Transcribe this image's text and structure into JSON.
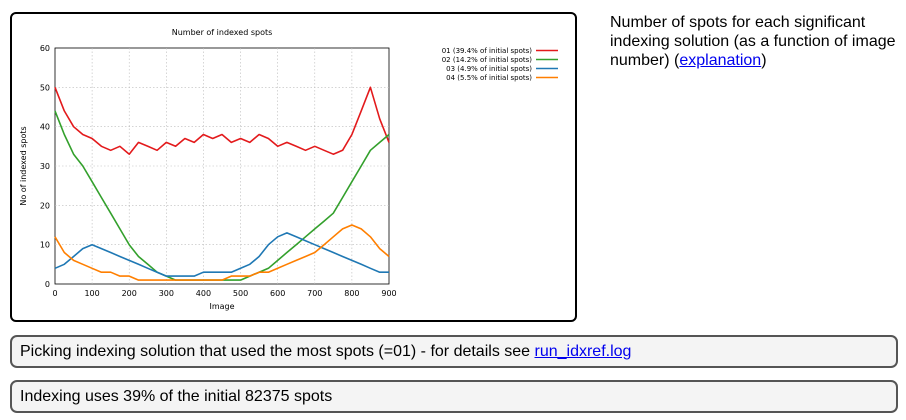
{
  "caption": {
    "text": "Number of spots for each significant indexing solution (as a function of image number) (",
    "link_label": "explanation",
    "close": ")"
  },
  "messages": {
    "picking_text": "Picking indexing solution that used the most spots (=01) - for details see ",
    "picking_link": "run_idxref.log",
    "indexing_text": "Indexing uses 39% of the initial 82375 spots"
  },
  "chart_data": {
    "type": "line",
    "title": "Number of indexed spots",
    "xlabel": "Image",
    "ylabel": "No of indexed spots",
    "xlim": [
      0,
      900
    ],
    "ylim": [
      0,
      60
    ],
    "xticks": [
      0,
      100,
      200,
      300,
      400,
      500,
      600,
      700,
      800,
      900
    ],
    "yticks": [
      0,
      10,
      20,
      30,
      40,
      50,
      60
    ],
    "grid": true,
    "legend_position": "top-right",
    "x": [
      0,
      25,
      50,
      75,
      100,
      125,
      150,
      175,
      200,
      225,
      250,
      275,
      300,
      325,
      350,
      375,
      400,
      425,
      450,
      475,
      500,
      525,
      550,
      575,
      600,
      625,
      650,
      675,
      700,
      725,
      750,
      775,
      800,
      825,
      850,
      875,
      900
    ],
    "series": [
      {
        "name": "01 (39.4% of initial spots)",
        "color": "#e31a1c",
        "values": [
          50,
          44,
          40,
          38,
          37,
          35,
          34,
          35,
          33,
          36,
          35,
          34,
          36,
          35,
          37,
          36,
          38,
          37,
          38,
          36,
          37,
          36,
          38,
          37,
          35,
          36,
          35,
          34,
          35,
          34,
          33,
          34,
          38,
          44,
          50,
          42,
          36
        ]
      },
      {
        "name": "02 (14.2% of initial spots)",
        "color": "#33a02c",
        "values": [
          44,
          38,
          33,
          30,
          26,
          22,
          18,
          14,
          10,
          7,
          5,
          3,
          2,
          1,
          1,
          1,
          1,
          1,
          1,
          1,
          1,
          2,
          3,
          4,
          6,
          8,
          10,
          12,
          14,
          16,
          18,
          22,
          26,
          30,
          34,
          36,
          38
        ]
      },
      {
        "name": "03 (4.9% of initial spots)",
        "color": "#1f78b4",
        "values": [
          4,
          5,
          7,
          9,
          10,
          9,
          8,
          7,
          6,
          5,
          4,
          3,
          2,
          2,
          2,
          2,
          3,
          3,
          3,
          3,
          4,
          5,
          7,
          10,
          12,
          13,
          12,
          11,
          10,
          9,
          8,
          7,
          6,
          5,
          4,
          3,
          3
        ]
      },
      {
        "name": "04 (5.5% of initial spots)",
        "color": "#ff7f00",
        "values": [
          12,
          8,
          6,
          5,
          4,
          3,
          3,
          2,
          2,
          1,
          1,
          1,
          1,
          1,
          1,
          1,
          1,
          1,
          1,
          2,
          2,
          2,
          3,
          3,
          4,
          5,
          6,
          7,
          8,
          10,
          12,
          14,
          15,
          14,
          12,
          9,
          7
        ]
      }
    ]
  }
}
